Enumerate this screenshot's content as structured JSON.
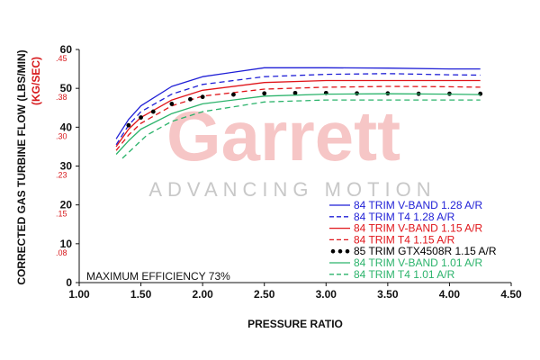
{
  "chart_data": {
    "type": "line",
    "xlabel": "PRESSURE RATIO",
    "ylabel_primary": "CORRECTED GAS TURBINE FLOW (LBS/MIN)",
    "ylabel_secondary": "(KG/SEC)",
    "xlim": [
      1.0,
      4.5
    ],
    "ylim": [
      0,
      60
    ],
    "x_ticks": [
      "1.00",
      "1.50",
      "2.00",
      "2.50",
      "3.00",
      "3.50",
      "4.00",
      "4.50"
    ],
    "y_ticks": [
      {
        "value": 0,
        "label": "0",
        "sec": ""
      },
      {
        "value": 10,
        "label": "10",
        "sec": ".08"
      },
      {
        "value": 20,
        "label": "20",
        "sec": ".15"
      },
      {
        "value": 30,
        "label": "30",
        "sec": ".23"
      },
      {
        "value": 40,
        "label": "40",
        "sec": ".30"
      },
      {
        "value": 50,
        "label": "50",
        "sec": ".38"
      },
      {
        "value": 60,
        "label": "60",
        "sec": ".45"
      }
    ],
    "annotation": "MAXIMUM EFFICIENCY 73%",
    "watermark": {
      "logo": "Garrett",
      "tagline": "ADVANCING MOTION"
    },
    "series": [
      {
        "name": "84 TRIM V-BAND 1.28 A/R",
        "color": "#1f1fd6",
        "style": "solid",
        "x": [
          1.3,
          1.4,
          1.5,
          1.75,
          2.0,
          2.5,
          3.0,
          3.5,
          4.0,
          4.25
        ],
        "y": [
          37.0,
          42.0,
          45.5,
          50.5,
          53.0,
          55.3,
          55.3,
          55.2,
          55.0,
          55.0
        ]
      },
      {
        "name": "84 TRIM T4 1.28 A/R",
        "color": "#1f1fd6",
        "style": "dashed",
        "x": [
          1.3,
          1.4,
          1.5,
          1.75,
          2.0,
          2.5,
          3.0,
          3.5,
          4.0,
          4.25
        ],
        "y": [
          35.5,
          40.5,
          44.0,
          48.5,
          51.0,
          53.0,
          53.6,
          53.8,
          53.5,
          53.4
        ]
      },
      {
        "name": "84 TRIM V-BAND 1.15 A/R",
        "color": "#e0151a",
        "style": "solid",
        "x": [
          1.3,
          1.4,
          1.5,
          1.75,
          2.0,
          2.5,
          3.0,
          3.5,
          4.0,
          4.25
        ],
        "y": [
          35.0,
          39.5,
          42.5,
          47.0,
          49.5,
          51.5,
          52.0,
          52.0,
          52.0,
          52.0
        ]
      },
      {
        "name": "84 TRIM T4 1.15 A/R",
        "color": "#e0151a",
        "style": "dashed",
        "x": [
          1.3,
          1.4,
          1.5,
          1.75,
          2.0,
          2.5,
          3.0,
          3.5,
          4.0,
          4.25
        ],
        "y": [
          34.0,
          38.0,
          41.0,
          45.5,
          48.0,
          49.8,
          50.3,
          50.5,
          50.4,
          50.3
        ]
      },
      {
        "name": "85 TRIM GTX4508R 1.15 A/R",
        "color": "#000000",
        "style": "dotted",
        "x": [
          1.4,
          1.5,
          1.6,
          1.75,
          1.9,
          2.0,
          2.25,
          2.5,
          2.75,
          3.0,
          3.25,
          3.5,
          3.75,
          4.0,
          4.25
        ],
        "y": [
          40.5,
          42.5,
          44.0,
          46.0,
          47.2,
          47.8,
          48.4,
          48.7,
          48.8,
          48.8,
          48.7,
          48.7,
          48.6,
          48.6,
          48.6
        ]
      },
      {
        "name": "84 TRIM V-BAND 1.01 A/R",
        "color": "#2bb36b",
        "style": "solid",
        "x": [
          1.3,
          1.4,
          1.5,
          1.75,
          2.0,
          2.5,
          3.0,
          3.5,
          4.0,
          4.25
        ],
        "y": [
          33.0,
          36.5,
          39.5,
          43.5,
          46.0,
          48.0,
          48.5,
          48.6,
          48.5,
          48.4
        ]
      },
      {
        "name": "84 TRIM T4 1.01 A/R",
        "color": "#2bb36b",
        "style": "dashed",
        "x": [
          1.35,
          1.45,
          1.55,
          1.75,
          2.0,
          2.5,
          3.0,
          3.5,
          4.0,
          4.25
        ],
        "y": [
          32.0,
          35.0,
          38.0,
          41.5,
          44.0,
          46.5,
          47.0,
          47.0,
          47.0,
          47.0
        ]
      }
    ]
  }
}
